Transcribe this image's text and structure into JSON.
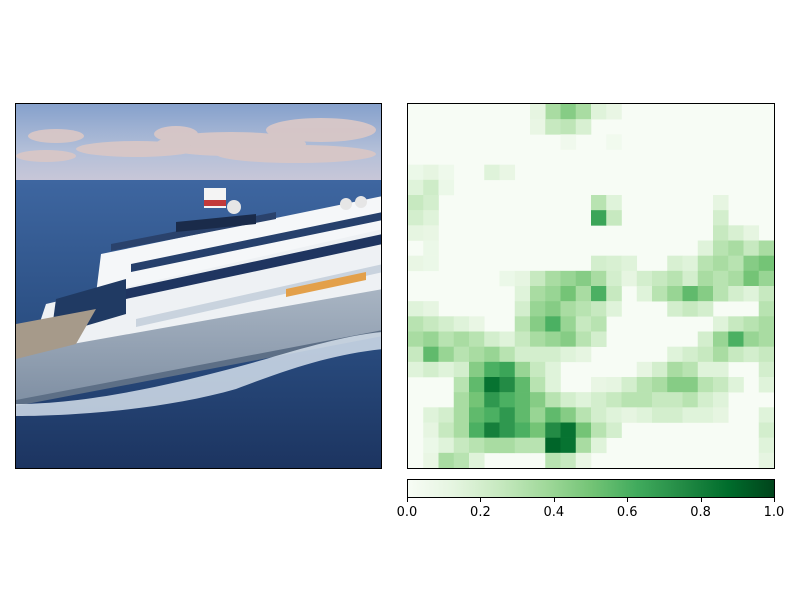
{
  "chart_data": [
    {
      "type": "image",
      "subject": "cruise ship at sea",
      "colors": {
        "sky_top": "#8fa6c9",
        "clouds": "#d9c8c6",
        "sea": "#2c4f82",
        "hull": "#9aa9b9",
        "superstructure": "#f2f4f6"
      }
    },
    {
      "type": "heatmap",
      "colormap": "Greens",
      "colormap_stops": [
        "#f7fcf5",
        "#e5f5e0",
        "#c7e9c0",
        "#a1d99b",
        "#74c476",
        "#41ab5d",
        "#238b45",
        "#006d2c",
        "#00441b"
      ],
      "grid_size": [
        24,
        24
      ],
      "cells": [
        [
          0,
          9,
          0.35
        ],
        [
          0,
          10,
          0.45
        ],
        [
          0,
          11,
          0.35
        ],
        [
          0,
          8,
          0.12
        ],
        [
          0,
          12,
          0.15
        ],
        [
          0,
          13,
          0.1
        ],
        [
          1,
          8,
          0.1
        ],
        [
          1,
          9,
          0.25
        ],
        [
          1,
          10,
          0.28
        ],
        [
          1,
          11,
          0.18
        ],
        [
          2,
          10,
          0.05
        ],
        [
          2,
          13,
          0.04
        ],
        [
          4,
          0,
          0.08
        ],
        [
          4,
          1,
          0.12
        ],
        [
          4,
          2,
          0.06
        ],
        [
          4,
          5,
          0.15
        ],
        [
          4,
          6,
          0.1
        ],
        [
          5,
          0,
          0.15
        ],
        [
          5,
          1,
          0.22
        ],
        [
          5,
          2,
          0.08
        ],
        [
          6,
          0,
          0.25
        ],
        [
          6,
          1,
          0.2
        ],
        [
          6,
          12,
          0.3
        ],
        [
          6,
          13,
          0.15
        ],
        [
          6,
          20,
          0.12
        ],
        [
          7,
          0,
          0.2
        ],
        [
          7,
          1,
          0.15
        ],
        [
          7,
          12,
          0.65
        ],
        [
          7,
          13,
          0.25
        ],
        [
          7,
          20,
          0.2
        ],
        [
          8,
          0,
          0.12
        ],
        [
          8,
          1,
          0.1
        ],
        [
          8,
          20,
          0.25
        ],
        [
          8,
          21,
          0.18
        ],
        [
          8,
          22,
          0.12
        ],
        [
          9,
          1,
          0.08
        ],
        [
          9,
          19,
          0.15
        ],
        [
          9,
          20,
          0.3
        ],
        [
          9,
          21,
          0.35
        ],
        [
          9,
          22,
          0.25
        ],
        [
          9,
          23,
          0.35
        ],
        [
          10,
          0,
          0.1
        ],
        [
          10,
          1,
          0.08
        ],
        [
          10,
          12,
          0.2
        ],
        [
          10,
          13,
          0.18
        ],
        [
          10,
          14,
          0.15
        ],
        [
          10,
          17,
          0.18
        ],
        [
          10,
          18,
          0.15
        ],
        [
          10,
          19,
          0.3
        ],
        [
          10,
          20,
          0.35
        ],
        [
          10,
          21,
          0.3
        ],
        [
          10,
          22,
          0.45
        ],
        [
          10,
          23,
          0.5
        ],
        [
          11,
          6,
          0.08
        ],
        [
          11,
          7,
          0.12
        ],
        [
          11,
          8,
          0.25
        ],
        [
          11,
          9,
          0.35
        ],
        [
          11,
          10,
          0.4
        ],
        [
          11,
          11,
          0.45
        ],
        [
          11,
          12,
          0.35
        ],
        [
          11,
          13,
          0.2
        ],
        [
          11,
          14,
          0.12
        ],
        [
          11,
          15,
          0.2
        ],
        [
          11,
          16,
          0.25
        ],
        [
          11,
          17,
          0.3
        ],
        [
          11,
          18,
          0.2
        ],
        [
          11,
          19,
          0.35
        ],
        [
          11,
          20,
          0.3
        ],
        [
          11,
          21,
          0.35
        ],
        [
          11,
          22,
          0.5
        ],
        [
          11,
          23,
          0.4
        ],
        [
          12,
          7,
          0.15
        ],
        [
          12,
          8,
          0.35
        ],
        [
          12,
          9,
          0.4
        ],
        [
          12,
          10,
          0.5
        ],
        [
          12,
          11,
          0.35
        ],
        [
          12,
          12,
          0.6
        ],
        [
          12,
          13,
          0.25
        ],
        [
          12,
          15,
          0.15
        ],
        [
          12,
          16,
          0.3
        ],
        [
          12,
          17,
          0.4
        ],
        [
          12,
          18,
          0.55
        ],
        [
          12,
          19,
          0.45
        ],
        [
          12,
          20,
          0.3
        ],
        [
          12,
          21,
          0.2
        ],
        [
          12,
          22,
          0.15
        ],
        [
          12,
          23,
          0.25
        ],
        [
          13,
          0,
          0.15
        ],
        [
          13,
          1,
          0.12
        ],
        [
          13,
          7,
          0.2
        ],
        [
          13,
          8,
          0.4
        ],
        [
          13,
          9,
          0.45
        ],
        [
          13,
          10,
          0.35
        ],
        [
          13,
          11,
          0.3
        ],
        [
          13,
          12,
          0.25
        ],
        [
          13,
          13,
          0.15
        ],
        [
          13,
          17,
          0.2
        ],
        [
          13,
          18,
          0.25
        ],
        [
          13,
          19,
          0.2
        ],
        [
          13,
          23,
          0.3
        ],
        [
          14,
          0,
          0.3
        ],
        [
          14,
          1,
          0.25
        ],
        [
          14,
          2,
          0.2
        ],
        [
          14,
          3,
          0.15
        ],
        [
          14,
          4,
          0.1
        ],
        [
          14,
          7,
          0.3
        ],
        [
          14,
          8,
          0.45
        ],
        [
          14,
          9,
          0.6
        ],
        [
          14,
          10,
          0.4
        ],
        [
          14,
          11,
          0.25
        ],
        [
          14,
          12,
          0.3
        ],
        [
          14,
          20,
          0.15
        ],
        [
          14,
          21,
          0.25
        ],
        [
          14,
          22,
          0.3
        ],
        [
          14,
          23,
          0.35
        ],
        [
          15,
          0,
          0.35
        ],
        [
          15,
          1,
          0.4
        ],
        [
          15,
          2,
          0.3
        ],
        [
          15,
          3,
          0.35
        ],
        [
          15,
          4,
          0.3
        ],
        [
          15,
          5,
          0.2
        ],
        [
          15,
          6,
          0.15
        ],
        [
          15,
          7,
          0.25
        ],
        [
          15,
          8,
          0.35
        ],
        [
          15,
          9,
          0.4
        ],
        [
          15,
          10,
          0.45
        ],
        [
          15,
          11,
          0.3
        ],
        [
          15,
          12,
          0.2
        ],
        [
          15,
          19,
          0.2
        ],
        [
          15,
          20,
          0.4
        ],
        [
          15,
          21,
          0.6
        ],
        [
          15,
          22,
          0.4
        ],
        [
          15,
          23,
          0.35
        ],
        [
          16,
          0,
          0.25
        ],
        [
          16,
          1,
          0.55
        ],
        [
          16,
          2,
          0.4
        ],
        [
          16,
          3,
          0.3
        ],
        [
          16,
          4,
          0.35
        ],
        [
          16,
          5,
          0.4
        ],
        [
          16,
          6,
          0.3
        ],
        [
          16,
          7,
          0.2
        ],
        [
          16,
          8,
          0.2
        ],
        [
          16,
          9,
          0.2
        ],
        [
          16,
          10,
          0.15
        ],
        [
          16,
          11,
          0.12
        ],
        [
          16,
          17,
          0.15
        ],
        [
          16,
          18,
          0.2
        ],
        [
          16,
          19,
          0.25
        ],
        [
          16,
          20,
          0.35
        ],
        [
          16,
          21,
          0.25
        ],
        [
          16,
          22,
          0.2
        ],
        [
          16,
          23,
          0.25
        ],
        [
          17,
          0,
          0.15
        ],
        [
          17,
          1,
          0.2
        ],
        [
          17,
          2,
          0.15
        ],
        [
          17,
          3,
          0.2
        ],
        [
          17,
          4,
          0.45
        ],
        [
          17,
          5,
          0.6
        ],
        [
          17,
          6,
          0.65
        ],
        [
          17,
          7,
          0.4
        ],
        [
          17,
          8,
          0.25
        ],
        [
          17,
          9,
          0.15
        ],
        [
          17,
          15,
          0.12
        ],
        [
          17,
          16,
          0.2
        ],
        [
          17,
          17,
          0.35
        ],
        [
          17,
          18,
          0.3
        ],
        [
          17,
          19,
          0.15
        ],
        [
          17,
          20,
          0.15
        ],
        [
          17,
          23,
          0.2
        ],
        [
          18,
          3,
          0.3
        ],
        [
          18,
          4,
          0.55
        ],
        [
          18,
          5,
          0.85
        ],
        [
          18,
          6,
          0.75
        ],
        [
          18,
          7,
          0.55
        ],
        [
          18,
          8,
          0.3
        ],
        [
          18,
          9,
          0.15
        ],
        [
          18,
          12,
          0.1
        ],
        [
          18,
          13,
          0.12
        ],
        [
          18,
          14,
          0.2
        ],
        [
          18,
          15,
          0.3
        ],
        [
          18,
          16,
          0.35
        ],
        [
          18,
          17,
          0.45
        ],
        [
          18,
          18,
          0.45
        ],
        [
          18,
          19,
          0.3
        ],
        [
          18,
          20,
          0.25
        ],
        [
          18,
          21,
          0.15
        ],
        [
          18,
          23,
          0.15
        ],
        [
          19,
          3,
          0.35
        ],
        [
          19,
          4,
          0.5
        ],
        [
          19,
          5,
          0.7
        ],
        [
          19,
          6,
          0.6
        ],
        [
          19,
          7,
          0.55
        ],
        [
          19,
          8,
          0.45
        ],
        [
          19,
          9,
          0.3
        ],
        [
          19,
          10,
          0.2
        ],
        [
          19,
          11,
          0.15
        ],
        [
          19,
          12,
          0.2
        ],
        [
          19,
          13,
          0.25
        ],
        [
          19,
          14,
          0.3
        ],
        [
          19,
          15,
          0.3
        ],
        [
          19,
          16,
          0.25
        ],
        [
          19,
          17,
          0.25
        ],
        [
          19,
          18,
          0.3
        ],
        [
          19,
          19,
          0.2
        ],
        [
          19,
          20,
          0.15
        ],
        [
          20,
          1,
          0.15
        ],
        [
          20,
          2,
          0.2
        ],
        [
          20,
          3,
          0.35
        ],
        [
          20,
          4,
          0.55
        ],
        [
          20,
          5,
          0.6
        ],
        [
          20,
          6,
          0.7
        ],
        [
          20,
          7,
          0.55
        ],
        [
          20,
          8,
          0.4
        ],
        [
          20,
          9,
          0.55
        ],
        [
          20,
          10,
          0.45
        ],
        [
          20,
          11,
          0.3
        ],
        [
          20,
          12,
          0.2
        ],
        [
          20,
          13,
          0.15
        ],
        [
          20,
          14,
          0.12
        ],
        [
          20,
          15,
          0.15
        ],
        [
          20,
          16,
          0.2
        ],
        [
          20,
          17,
          0.2
        ],
        [
          20,
          18,
          0.15
        ],
        [
          20,
          19,
          0.15
        ],
        [
          20,
          20,
          0.12
        ],
        [
          20,
          23,
          0.15
        ],
        [
          21,
          1,
          0.12
        ],
        [
          21,
          2,
          0.25
        ],
        [
          21,
          3,
          0.35
        ],
        [
          21,
          4,
          0.6
        ],
        [
          21,
          5,
          0.8
        ],
        [
          21,
          6,
          0.7
        ],
        [
          21,
          7,
          0.6
        ],
        [
          21,
          8,
          0.5
        ],
        [
          21,
          9,
          0.75
        ],
        [
          21,
          10,
          0.85
        ],
        [
          21,
          11,
          0.5
        ],
        [
          21,
          12,
          0.3
        ],
        [
          21,
          13,
          0.2
        ],
        [
          21,
          23,
          0.2
        ],
        [
          22,
          1,
          0.08
        ],
        [
          22,
          2,
          0.15
        ],
        [
          22,
          3,
          0.25
        ],
        [
          22,
          4,
          0.3
        ],
        [
          22,
          5,
          0.35
        ],
        [
          22,
          6,
          0.35
        ],
        [
          22,
          7,
          0.3
        ],
        [
          22,
          8,
          0.3
        ],
        [
          22,
          9,
          0.9
        ],
        [
          22,
          10,
          0.85
        ],
        [
          22,
          11,
          0.35
        ],
        [
          22,
          12,
          0.15
        ],
        [
          22,
          23,
          0.15
        ],
        [
          23,
          1,
          0.1
        ],
        [
          23,
          2,
          0.35
        ],
        [
          23,
          3,
          0.3
        ],
        [
          23,
          4,
          0.15
        ],
        [
          23,
          9,
          0.3
        ],
        [
          23,
          10,
          0.25
        ],
        [
          23,
          11,
          0.1
        ],
        [
          23,
          23,
          0.12
        ]
      ],
      "colorbar": {
        "range": [
          0.0,
          1.0
        ],
        "orientation": "horizontal",
        "ticks": [
          0.0,
          0.2,
          0.4,
          0.6,
          0.8,
          1.0
        ],
        "tick_labels": [
          "0.0",
          "0.2",
          "0.4",
          "0.6",
          "0.8",
          "1.0"
        ]
      }
    }
  ]
}
